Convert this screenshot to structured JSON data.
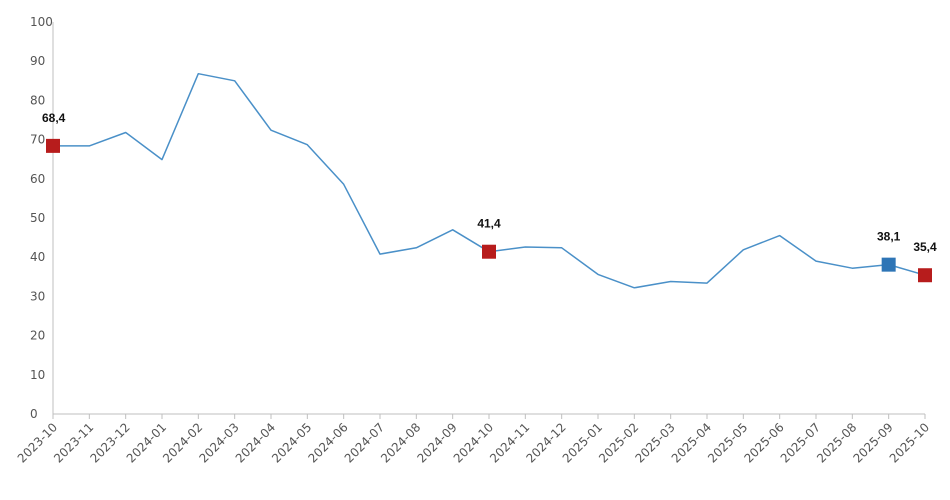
{
  "chart_data": {
    "type": "line",
    "title": "",
    "xlabel": "",
    "ylabel": "",
    "ylim": [
      0,
      100
    ],
    "y_ticks": [
      0,
      10,
      20,
      30,
      40,
      50,
      60,
      70,
      80,
      90,
      100
    ],
    "grid": false,
    "categories": [
      "2023-10",
      "2023-11",
      "2023-12",
      "2024-01",
      "2024-02",
      "2024-03",
      "2024-04",
      "2024-05",
      "2024-06",
      "2024-07",
      "2024-08",
      "2024-09",
      "2024-10",
      "2024-11",
      "2024-12",
      "2025-01",
      "2025-02",
      "2025-03",
      "2025-04",
      "2025-05",
      "2025-06",
      "2025-07",
      "2025-08",
      "2025-09",
      "2025-10"
    ],
    "series": [
      {
        "values": [
          68.4,
          68.4,
          71.8,
          64.9,
          86.8,
          85.0,
          72.4,
          68.7,
          58.6,
          40.8,
          42.4,
          47.0,
          41.4,
          42.6,
          42.4,
          35.6,
          32.2,
          33.8,
          33.4,
          41.9,
          45.5,
          39.0,
          37.2,
          38.1,
          35.4
        ],
        "color": "#4a90c8"
      }
    ],
    "highlights": [
      {
        "category": "2023-10",
        "value": 68.4,
        "label": "68,4",
        "color": "#b71c1c"
      },
      {
        "category": "2024-10",
        "value": 41.4,
        "label": "41,4",
        "color": "#b71c1c"
      },
      {
        "category": "2025-09",
        "value": 38.1,
        "label": "38,1",
        "color": "#2e75b6"
      },
      {
        "category": "2025-10",
        "value": 35.4,
        "label": "35,4",
        "color": "#b71c1c"
      }
    ],
    "axis_color": "#bfbfbf"
  }
}
